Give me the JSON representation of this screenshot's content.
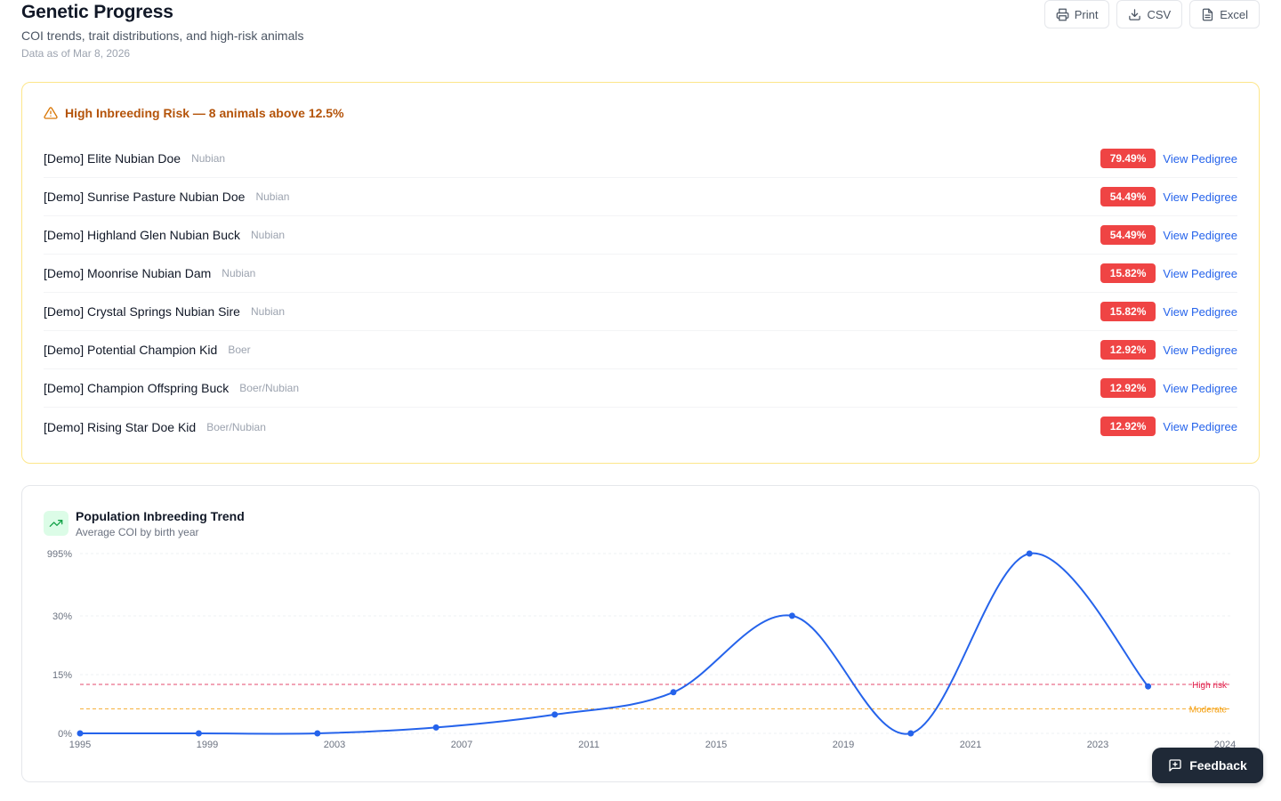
{
  "header": {
    "title": "Genetic Progress",
    "subtitle": "COI trends, trait distributions, and high-risk animals",
    "as_of": "Data as of Mar 8, 2026",
    "actions": [
      {
        "label": "Print",
        "icon": "printer-icon"
      },
      {
        "label": "CSV",
        "icon": "download-icon"
      },
      {
        "label": "Excel",
        "icon": "file-spreadsheet-icon"
      }
    ]
  },
  "risk": {
    "title": "High Inbreeding Risk — 8 animals above 12.5%",
    "link_label": "View Pedigree",
    "animals": [
      {
        "name": "[Demo] Elite Nubian Doe",
        "breed": "Nubian",
        "coi": "79.49%"
      },
      {
        "name": "[Demo] Sunrise Pasture Nubian Doe",
        "breed": "Nubian",
        "coi": "54.49%"
      },
      {
        "name": "[Demo] Highland Glen Nubian Buck",
        "breed": "Nubian",
        "coi": "54.49%"
      },
      {
        "name": "[Demo] Moonrise Nubian Dam",
        "breed": "Nubian",
        "coi": "15.82%"
      },
      {
        "name": "[Demo] Crystal Springs Nubian Sire",
        "breed": "Nubian",
        "coi": "15.82%"
      },
      {
        "name": "[Demo] Potential Champion Kid",
        "breed": "Boer",
        "coi": "12.92%"
      },
      {
        "name": "[Demo] Champion Offspring Buck",
        "breed": "Boer/Nubian",
        "coi": "12.92%"
      },
      {
        "name": "[Demo] Rising Star Doe Kid",
        "breed": "Boer/Nubian",
        "coi": "12.92%"
      }
    ]
  },
  "trend": {
    "title": "Population Inbreeding Trend",
    "subtitle": "Average COI by birth year"
  },
  "chart_data": {
    "type": "line",
    "title": "Population Inbreeding Trend",
    "subtitle": "Average COI by birth year",
    "x_tick_labels": [
      "1995",
      "1999",
      "2003",
      "2007",
      "2011",
      "2015",
      "2019",
      "2021",
      "2023",
      "2024"
    ],
    "y_tick_labels": [
      "0%",
      "15%",
      "30%",
      "995%"
    ],
    "series": [
      {
        "color": "#2563eb",
        "points": [
          {
            "x": "1995",
            "y": 0
          },
          {
            "x": "1998",
            "y": 0
          },
          {
            "x": "2001",
            "y": 0
          },
          {
            "x": "2004",
            "y": 1.5
          },
          {
            "x": "2007",
            "y": 4.8
          },
          {
            "x": "2010",
            "y": 10.5
          },
          {
            "x": "2013",
            "y": 31.5
          },
          {
            "x": "2016",
            "y": 0
          },
          {
            "x": "2019",
            "y": 995
          },
          {
            "x": "2022",
            "y": 12
          }
        ]
      }
    ],
    "reference_lines": [
      {
        "label": "High risk",
        "y": 12.5,
        "color": "#e11d48"
      },
      {
        "label": "Moderate",
        "y": 6.25,
        "color": "#f59e0b"
      }
    ],
    "grid": true
  },
  "feedback": {
    "label": "Feedback"
  }
}
